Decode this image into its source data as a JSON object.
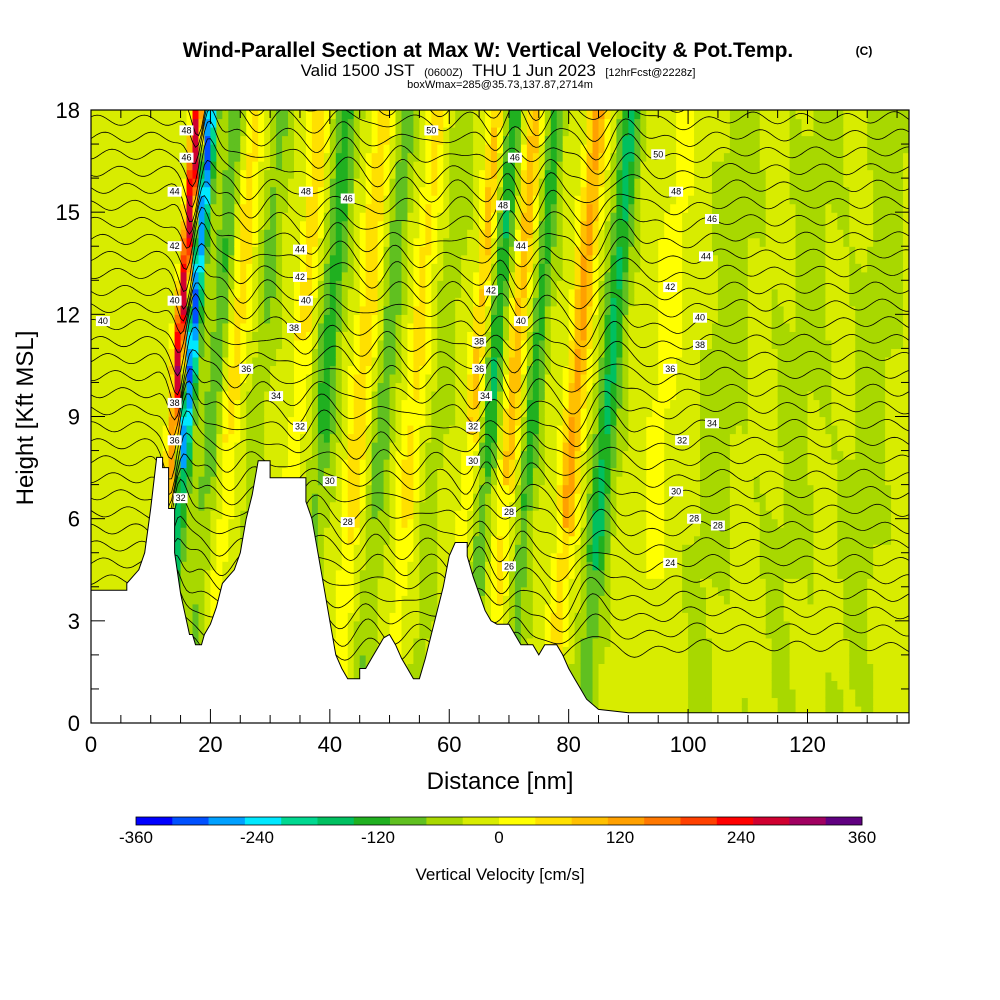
{
  "title": {
    "main": "Wind-Parallel Section at Max W: Vertical Velocity & Pot.Temp.",
    "copyright": "(C)",
    "valid_prefix": "Valid 1500 JST",
    "valid_utc": "(0600Z)",
    "valid_date": "THU 1 Jun 2023",
    "forecast": "[12hrFcst@2228z]",
    "box_info": "boxWmax=285@35.73,137.87,2714m"
  },
  "chart_data": {
    "type": "heatmap",
    "xlabel": "Distance [nm]",
    "ylabel": "Height [Kft MSL]",
    "xlim": [
      0,
      137
    ],
    "ylim": [
      0,
      18
    ],
    "x_ticks": [
      0,
      20,
      40,
      60,
      80,
      100,
      120
    ],
    "y_ticks": [
      0,
      3,
      6,
      9,
      12,
      15,
      18
    ],
    "grid": false,
    "colorbar": {
      "title": "Vertical Velocity [cm/s]",
      "min": -360,
      "max": 360,
      "step": 40,
      "tick_values": [
        -360,
        -240,
        -120,
        0,
        120,
        240,
        360
      ],
      "colors": [
        "#0000ff",
        "#0050ff",
        "#00a0ff",
        "#00e8ff",
        "#00d890",
        "#00c060",
        "#20b020",
        "#60c020",
        "#a8d800",
        "#d8ec00",
        "#ffff00",
        "#ffe000",
        "#ffc000",
        "#ffa000",
        "#ff7800",
        "#ff4000",
        "#ff0000",
        "#d00030",
        "#a00060",
        "#600080"
      ]
    },
    "fill_velocity_approx": [
      {
        "x": 13.5,
        "w": 1.0,
        "value": 360
      },
      {
        "x": 15.5,
        "w": 1.2,
        "value": -300
      },
      {
        "x": 20.0,
        "w": 1.6,
        "value": -90
      },
      {
        "x": 23.0,
        "w": 1.8,
        "value": 90
      },
      {
        "x": 27.5,
        "w": 1.6,
        "value": -60
      },
      {
        "x": 34.0,
        "w": 1.6,
        "value": 100
      },
      {
        "x": 38.5,
        "w": 1.8,
        "value": -110
      },
      {
        "x": 44.5,
        "w": 1.8,
        "value": 100
      },
      {
        "x": 48.5,
        "w": 1.6,
        "value": -80
      },
      {
        "x": 53.5,
        "w": 1.8,
        "value": 80
      },
      {
        "x": 58.0,
        "w": 1.6,
        "value": -40
      },
      {
        "x": 63.5,
        "w": 1.3,
        "value": 120
      },
      {
        "x": 66.5,
        "w": 1.4,
        "value": -130
      },
      {
        "x": 70.0,
        "w": 1.5,
        "value": 130
      },
      {
        "x": 73.5,
        "w": 1.4,
        "value": -110
      },
      {
        "x": 80.5,
        "w": 1.7,
        "value": 160
      },
      {
        "x": 86.0,
        "w": 1.8,
        "value": -140
      },
      {
        "x": 95.0,
        "w": 3.0,
        "value": 40
      },
      {
        "x": 105.0,
        "w": 3.0,
        "value": -30
      },
      {
        "x": 118.0,
        "w": 4.0,
        "value": -20
      },
      {
        "x": 130.0,
        "w": 3.0,
        "value": -30
      }
    ],
    "theta_contours": [
      24,
      26,
      28,
      30,
      32,
      34,
      36,
      38,
      40,
      42,
      44,
      46,
      48,
      50
    ],
    "theta_labels": [
      {
        "text": "40",
        "x": 2,
        "y": 11.8
      },
      {
        "text": "48",
        "x": 16,
        "y": 17.4
      },
      {
        "text": "46",
        "x": 16,
        "y": 16.6
      },
      {
        "text": "44",
        "x": 14,
        "y": 15.6
      },
      {
        "text": "42",
        "x": 14,
        "y": 14.0
      },
      {
        "text": "40",
        "x": 14,
        "y": 12.4
      },
      {
        "text": "38",
        "x": 14,
        "y": 9.4
      },
      {
        "text": "36",
        "x": 14,
        "y": 8.3
      },
      {
        "text": "32",
        "x": 15,
        "y": 6.6
      },
      {
        "text": "48",
        "x": 36,
        "y": 15.6
      },
      {
        "text": "46",
        "x": 43,
        "y": 15.4
      },
      {
        "text": "44",
        "x": 35,
        "y": 13.9
      },
      {
        "text": "42",
        "x": 35,
        "y": 13.1
      },
      {
        "text": "40",
        "x": 36,
        "y": 12.4
      },
      {
        "text": "38",
        "x": 34,
        "y": 11.6
      },
      {
        "text": "36",
        "x": 26,
        "y": 10.4
      },
      {
        "text": "34",
        "x": 31,
        "y": 9.6
      },
      {
        "text": "32",
        "x": 35,
        "y": 8.7
      },
      {
        "text": "30",
        "x": 40,
        "y": 7.1
      },
      {
        "text": "28",
        "x": 43,
        "y": 5.9
      },
      {
        "text": "50",
        "x": 57,
        "y": 17.4
      },
      {
        "text": "46",
        "x": 71,
        "y": 16.6
      },
      {
        "text": "48",
        "x": 69,
        "y": 15.2
      },
      {
        "text": "44",
        "x": 72,
        "y": 14.0
      },
      {
        "text": "42",
        "x": 67,
        "y": 12.7
      },
      {
        "text": "40",
        "x": 72,
        "y": 11.8
      },
      {
        "text": "38",
        "x": 65,
        "y": 11.2
      },
      {
        "text": "36",
        "x": 65,
        "y": 10.4
      },
      {
        "text": "34",
        "x": 66,
        "y": 9.6
      },
      {
        "text": "32",
        "x": 64,
        "y": 8.7
      },
      {
        "text": "30",
        "x": 64,
        "y": 7.7
      },
      {
        "text": "28",
        "x": 70,
        "y": 6.2
      },
      {
        "text": "26",
        "x": 70,
        "y": 4.6
      },
      {
        "text": "50",
        "x": 95,
        "y": 16.7
      },
      {
        "text": "48",
        "x": 98,
        "y": 15.6
      },
      {
        "text": "46",
        "x": 104,
        "y": 14.8
      },
      {
        "text": "44",
        "x": 103,
        "y": 13.7
      },
      {
        "text": "42",
        "x": 97,
        "y": 12.8
      },
      {
        "text": "40",
        "x": 102,
        "y": 11.9
      },
      {
        "text": "38",
        "x": 102,
        "y": 11.1
      },
      {
        "text": "36",
        "x": 97,
        "y": 10.4
      },
      {
        "text": "34",
        "x": 104,
        "y": 8.8
      },
      {
        "text": "32",
        "x": 99,
        "y": 8.3
      },
      {
        "text": "30",
        "x": 98,
        "y": 6.8
      },
      {
        "text": "28",
        "x": 101,
        "y": 6.0
      },
      {
        "text": "28",
        "x": 105,
        "y": 5.8
      },
      {
        "text": "24",
        "x": 97,
        "y": 4.7
      }
    ],
    "terrain_profile": [
      [
        0,
        3.9
      ],
      [
        6,
        3.9
      ],
      [
        6,
        4.1
      ],
      [
        7,
        4.3
      ],
      [
        8,
        4.5
      ],
      [
        9,
        5.0
      ],
      [
        10,
        6.3
      ],
      [
        11,
        7.8
      ],
      [
        12,
        7.8
      ],
      [
        12,
        7.5
      ],
      [
        13,
        7.5
      ],
      [
        13,
        6.3
      ],
      [
        14,
        6.3
      ],
      [
        14,
        5.0
      ],
      [
        15,
        3.8
      ],
      [
        16,
        3.0
      ],
      [
        16.5,
        2.6
      ],
      [
        17,
        2.6
      ],
      [
        17.5,
        2.3
      ],
      [
        18.5,
        2.3
      ],
      [
        19,
        2.6
      ],
      [
        20,
        2.9
      ],
      [
        21,
        3.4
      ],
      [
        22,
        4.1
      ],
      [
        23,
        4.3
      ],
      [
        24,
        4.5
      ],
      [
        25,
        5.0
      ],
      [
        26,
        6.0
      ],
      [
        27,
        6.7
      ],
      [
        28,
        7.7
      ],
      [
        30,
        7.7
      ],
      [
        30,
        7.2
      ],
      [
        36,
        7.2
      ],
      [
        36,
        6.5
      ],
      [
        37,
        6.0
      ],
      [
        38,
        5.0
      ],
      [
        39,
        4.0
      ],
      [
        40,
        3.0
      ],
      [
        41,
        2.0
      ],
      [
        42,
        1.6
      ],
      [
        43,
        1.3
      ],
      [
        45,
        1.3
      ],
      [
        45,
        1.6
      ],
      [
        46,
        1.6
      ],
      [
        47,
        1.9
      ],
      [
        48,
        2.2
      ],
      [
        49,
        2.5
      ],
      [
        50,
        2.6
      ],
      [
        51,
        2.3
      ],
      [
        52,
        1.9
      ],
      [
        53,
        1.6
      ],
      [
        54,
        1.3
      ],
      [
        55,
        1.3
      ],
      [
        56,
        1.9
      ],
      [
        57,
        2.6
      ],
      [
        58,
        3.3
      ],
      [
        59,
        4.0
      ],
      [
        60,
        4.9
      ],
      [
        61,
        5.3
      ],
      [
        63,
        5.3
      ],
      [
        63,
        4.9
      ],
      [
        64,
        4.3
      ],
      [
        65,
        3.8
      ],
      [
        66,
        3.3
      ],
      [
        67,
        3.0
      ],
      [
        68,
        2.9
      ],
      [
        70,
        2.9
      ],
      [
        71,
        2.6
      ],
      [
        72,
        2.3
      ],
      [
        74,
        2.3
      ],
      [
        75,
        2.0
      ],
      [
        76,
        2.3
      ],
      [
        78,
        2.3
      ],
      [
        79,
        2.0
      ],
      [
        80,
        1.6
      ],
      [
        81,
        1.3
      ],
      [
        82,
        1.0
      ],
      [
        83,
        0.7
      ],
      [
        85,
        0.4
      ],
      [
        90,
        0.3
      ],
      [
        95,
        0.3
      ],
      [
        137,
        0.3
      ]
    ]
  }
}
